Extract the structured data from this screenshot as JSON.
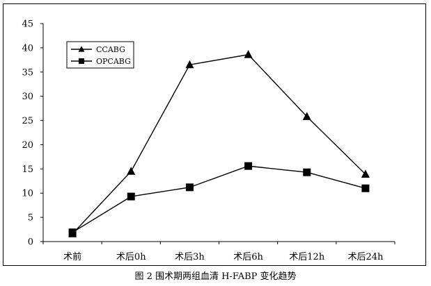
{
  "caption": "图 2 围术期两组血清 H-FABP 变化趋势",
  "chart_data": {
    "type": "line",
    "categories": [
      "术前",
      "术后0h",
      "术后3h",
      "术后6h",
      "术后12h",
      "术后24h"
    ],
    "ylim": [
      0,
      45
    ],
    "yticks": [
      0,
      5,
      10,
      15,
      20,
      25,
      30,
      35,
      40,
      45
    ],
    "title": "",
    "xlabel": "",
    "ylabel": "",
    "grid": false,
    "legend": "top-left",
    "series": [
      {
        "name": "CCABG",
        "marker": "triangle",
        "color": "#000000",
        "values": [
          1.6,
          14.5,
          36.5,
          38.6,
          25.8,
          13.9
        ]
      },
      {
        "name": "OPCABG",
        "marker": "square",
        "color": "#000000",
        "values": [
          1.9,
          9.3,
          11.2,
          15.6,
          14.3,
          11.0
        ]
      }
    ]
  }
}
